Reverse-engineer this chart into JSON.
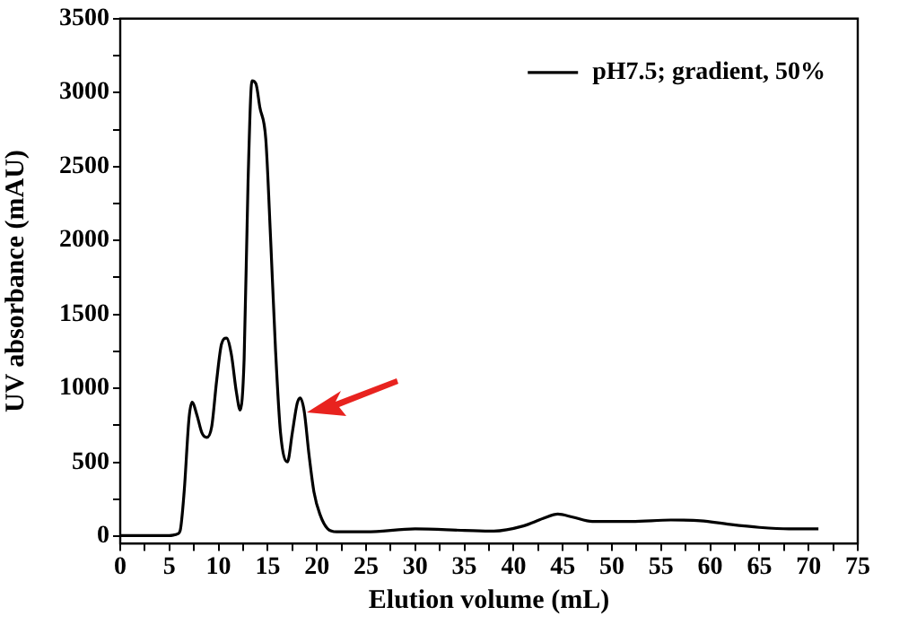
{
  "chart_data": {
    "type": "line",
    "xlabel": "Elution volume (mL)",
    "ylabel": "UV absorbance (mAU)",
    "x": [
      0,
      2,
      4,
      5,
      5.4,
      5.8,
      6.1,
      6.5,
      7,
      7.3,
      7.8,
      8.3,
      8.8,
      9.3,
      9.8,
      10.3,
      10.8,
      11.3,
      11.8,
      12.2,
      12.6,
      13,
      13.4,
      13.8,
      14.2,
      14.8,
      15.3,
      15.8,
      16.3,
      17,
      17.5,
      18,
      18.3,
      18.7,
      19.2,
      19.7,
      20.3,
      21.1,
      22,
      25,
      30,
      35,
      38,
      41,
      43,
      44.5,
      46,
      48,
      52,
      56,
      59,
      62,
      65,
      68,
      71
    ],
    "series": [
      {
        "name": "pH7.5; gradient, 50%",
        "color": "#000000",
        "values": [
          5,
          5,
          5,
          5,
          8,
          15,
          40,
          300,
          800,
          906,
          820,
          700,
          668,
          740,
          1050,
          1300,
          1340,
          1230,
          980,
          853,
          1200,
          2400,
          3080,
          3060,
          2900,
          2687,
          2000,
          1250,
          700,
          503,
          700,
          900,
          936,
          850,
          550,
          300,
          150,
          50,
          30,
          30,
          50,
          40,
          35,
          70,
          120,
          150,
          130,
          100,
          100,
          110,
          105,
          80,
          60,
          50,
          50
        ]
      }
    ],
    "xlim": [
      0,
      75
    ],
    "ylim": [
      -50,
      3500
    ],
    "xticks": [
      0,
      {
        "value": 2.5,
        "label": null
      },
      5,
      {
        "value": 7.5,
        "label": null
      },
      10,
      {
        "value": 12.5,
        "label": null
      },
      15,
      {
        "value": 17.5,
        "label": null
      },
      20,
      {
        "value": 22.5,
        "label": null
      },
      25,
      {
        "value": 27.5,
        "label": null
      },
      30,
      {
        "value": 32.5,
        "label": null
      },
      35,
      {
        "value": 37.5,
        "label": null
      },
      40,
      {
        "value": 42.5,
        "label": null
      },
      45,
      {
        "value": 47.5,
        "label": null
      },
      50,
      {
        "value": 52.5,
        "label": null
      },
      55,
      {
        "value": 57.5,
        "label": null
      },
      60,
      {
        "value": 62.5,
        "label": null
      },
      65,
      {
        "value": 67.5,
        "label": null
      },
      70,
      {
        "value": 72.5,
        "label": null
      },
      75
    ],
    "yticks": [
      0,
      {
        "value": 250,
        "label": null
      },
      500,
      {
        "value": 750,
        "label": null
      },
      1000,
      {
        "value": 1250,
        "label": null
      },
      1500,
      {
        "value": 1750,
        "label": null
      },
      2000,
      {
        "value": 2250,
        "label": null
      },
      2500,
      {
        "value": 2750,
        "label": null
      },
      3000,
      {
        "value": 3250,
        "label": null
      },
      3500
    ],
    "legend": "top right",
    "grid": false,
    "marker": "none",
    "line_style": "solid"
  }
}
